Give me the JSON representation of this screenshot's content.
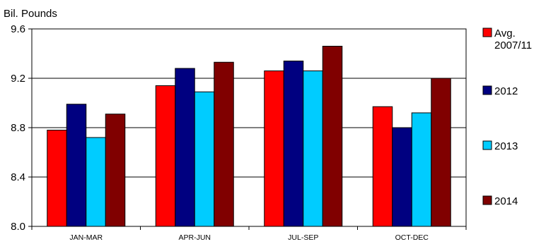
{
  "chart_data": {
    "type": "bar",
    "title": "",
    "xlabel": "",
    "ylabel": "Bil. Pounds",
    "ylim": [
      8.0,
      9.6
    ],
    "yticks": [
      "9.6",
      "9.2",
      "8.8",
      "8.4",
      "8.0"
    ],
    "ytick_values": [
      9.6,
      9.2,
      8.8,
      8.4,
      8.0
    ],
    "grid": true,
    "legend_position": "right",
    "categories": [
      "JAN-MAR",
      "APR-JUN",
      "JUL-SEP",
      "OCT-DEC"
    ],
    "series": [
      {
        "name": "Avg. 2007/11",
        "label_lines": [
          "Avg.",
          "2007/11"
        ],
        "color": "#ff0000",
        "values": [
          8.78,
          9.14,
          9.26,
          8.97
        ]
      },
      {
        "name": "2012",
        "label_lines": [
          "2012"
        ],
        "color": "#000080",
        "values": [
          8.99,
          9.28,
          9.34,
          8.8
        ]
      },
      {
        "name": "2013",
        "label_lines": [
          "2013"
        ],
        "color": "#00ccff",
        "values": [
          8.72,
          9.09,
          9.26,
          8.92
        ]
      },
      {
        "name": "2014",
        "label_lines": [
          "2014"
        ],
        "color": "#800000",
        "values": [
          8.91,
          9.33,
          9.46,
          9.2
        ]
      }
    ]
  }
}
